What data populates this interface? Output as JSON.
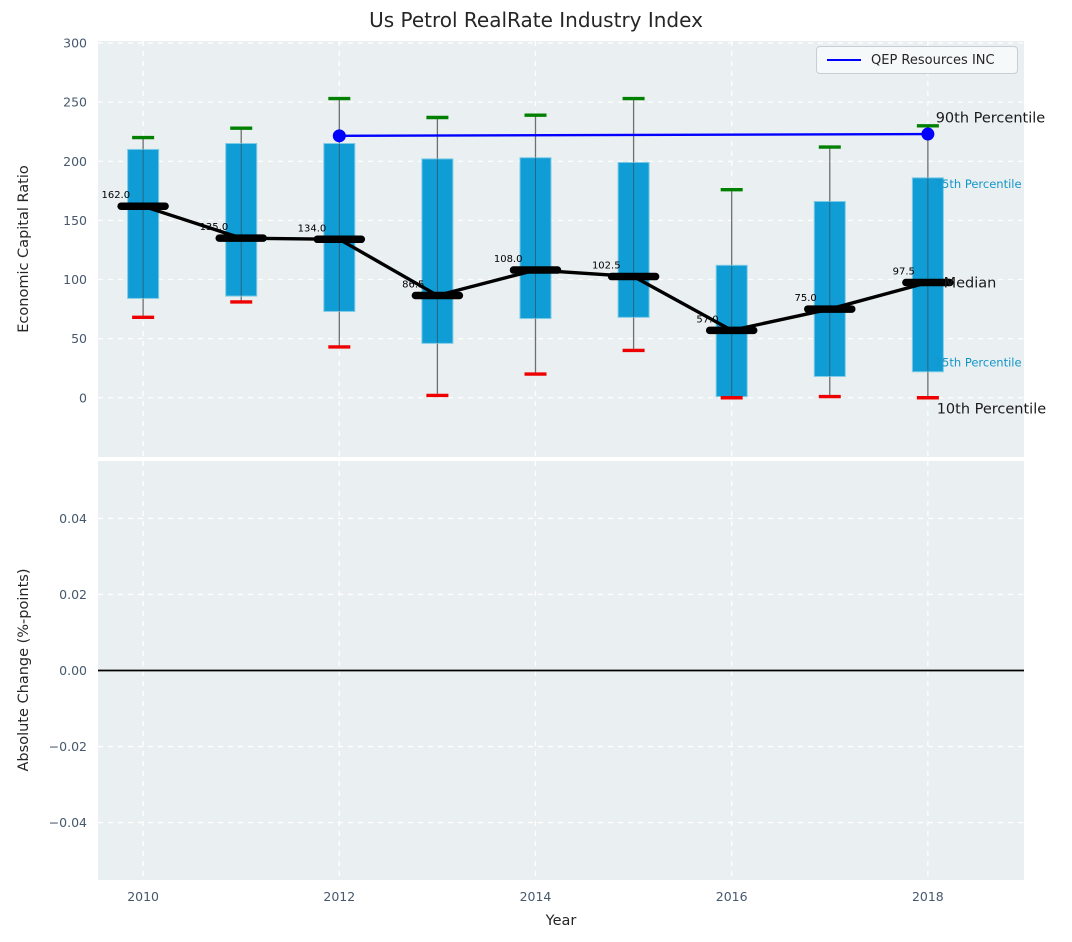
{
  "title": "Us Petrol RealRate Industry Index",
  "legend": {
    "label": "QEP Resources INC",
    "line_color": "#0000ff"
  },
  "xlabel": "Year",
  "chart_data": {
    "type": "boxplot-timeseries",
    "title": "Us Petrol RealRate Industry Index",
    "xlabel": "Year",
    "xlim": [
      2009.54,
      2018.98
    ],
    "xticks": [
      2010,
      2012,
      2014,
      2016,
      2018
    ],
    "style": {
      "panel_bg": "#eaeff1",
      "grid_color": "#ffffff",
      "tick_color": "#47586d",
      "text_color": "#262626",
      "box_fill": "#109cd5",
      "box_edge": "#7ecbe6",
      "whisker_color": "#6f6f6f",
      "cap_high_color": "#008000",
      "cap_low_color": "#ee0000",
      "median_color": "#000000",
      "company_color": "#0000ff",
      "percentile_label_color": "#1496c8"
    },
    "panels": [
      {
        "ylabel": "Economic Capital Ratio",
        "ylim": [
          -50.1,
          301.7
        ],
        "yticks": [
          0,
          50,
          100,
          150,
          200,
          250,
          300
        ],
        "tick_decimals": 0,
        "years": [
          2010,
          2011,
          2012,
          2013,
          2014,
          2015,
          2016,
          2017,
          2018
        ],
        "boxes": {
          "whisker_low": [
            68,
            81,
            43,
            2,
            20,
            40,
            0,
            1,
            0
          ],
          "q1": [
            84,
            86,
            73,
            46,
            67,
            68,
            1,
            18,
            22
          ],
          "median": [
            162,
            135,
            134,
            86.5,
            108,
            102.5,
            57,
            75,
            97.5
          ],
          "q3": [
            210,
            215,
            215,
            202,
            203,
            199,
            112,
            166,
            186
          ],
          "whisker_high": [
            220,
            228,
            253,
            237,
            239,
            253,
            176,
            212,
            230
          ]
        },
        "median_labels": [
          "162.0",
          "135.0",
          "134.0",
          "86.5",
          "108.0",
          "102.5",
          "57.0",
          "75.0",
          "97.5"
        ],
        "company_line": {
          "name": "QEP Resources INC",
          "points": [
            {
              "x": 2012,
              "y": 221.5
            },
            {
              "x": 2018,
              "y": 223
            }
          ]
        },
        "annotations": [
          {
            "text": "90th Percentile",
            "x": 2018.08,
            "y": 237,
            "color": "#1a1a1a",
            "size": 14.5
          },
          {
            "text": "75th Percentile",
            "x": 2018.07,
            "y": 181,
            "color": "#1496c8",
            "size": 11.5
          },
          {
            "text": "Median",
            "x": 2018.16,
            "y": 97.5,
            "color": "#1a1a1a",
            "size": 14.5
          },
          {
            "text": "25th Percentile",
            "x": 2018.07,
            "y": 30,
            "color": "#1496c8",
            "size": 11.5
          },
          {
            "text": "10th Percentile",
            "x": 2018.09,
            "y": -9,
            "color": "#1a1a1a",
            "size": 14.5
          }
        ]
      },
      {
        "ylabel": "Absolute Change (%-points)",
        "ylim": [
          -0.0551,
          0.0551
        ],
        "yticks": [
          0.04,
          0.02,
          0.0,
          -0.02,
          -0.04
        ],
        "tick_decimals": 2,
        "zero_line": 0
      }
    ]
  }
}
